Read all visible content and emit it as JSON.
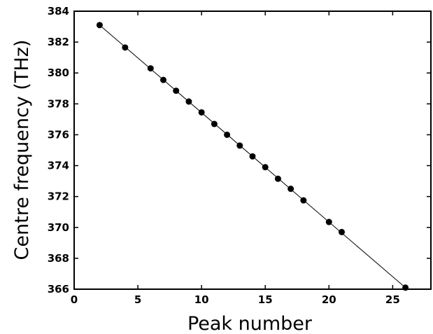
{
  "chart_data": {
    "type": "scatter",
    "xlabel": "Peak number",
    "ylabel": "Centre frequency (THz)",
    "xlim": [
      0,
      28
    ],
    "ylim": [
      366,
      384
    ],
    "x_ticks": [
      0,
      5,
      10,
      15,
      20,
      25
    ],
    "y_ticks": [
      366,
      368,
      370,
      372,
      374,
      376,
      378,
      380,
      382,
      384
    ],
    "grid": false,
    "fit_line": {
      "x": [
        2,
        26
      ],
      "y": [
        383.1,
        366.1
      ]
    },
    "series": [
      {
        "marker_color": "#000000",
        "x": [
          2,
          4,
          6,
          7,
          8,
          9,
          10,
          11,
          12,
          13,
          14,
          15,
          16,
          17,
          18,
          20,
          21,
          26
        ],
        "y": [
          383.1,
          381.65,
          380.3,
          379.55,
          378.85,
          378.15,
          377.45,
          376.7,
          376.0,
          375.3,
          374.6,
          373.9,
          373.15,
          372.5,
          371.75,
          370.35,
          369.7,
          366.1
        ]
      }
    ]
  }
}
